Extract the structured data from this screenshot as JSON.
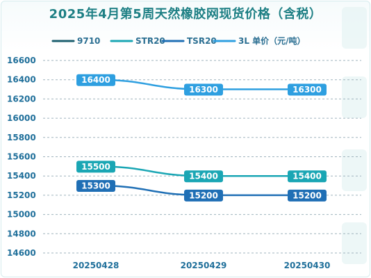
{
  "chart_data": {
    "type": "line",
    "title": "2025年4月第5周天然橡胶网现货价格（含税）",
    "categories": [
      "20250428",
      "20250429",
      "20250430"
    ],
    "ylim": [
      14600,
      16600
    ],
    "yticks": [
      14600,
      14800,
      15000,
      15200,
      15400,
      15600,
      15800,
      16000,
      16200,
      16400,
      16600
    ],
    "grid": true,
    "legend_position": "top",
    "series": [
      {
        "name": "9710",
        "values": [
          null,
          null,
          null
        ],
        "color": "#1b5e6e"
      },
      {
        "name": "STR20",
        "values": [
          15500,
          15400,
          15400
        ],
        "color": "#1aa6b4"
      },
      {
        "name": "TSR20",
        "values": [
          15300,
          15200,
          15200
        ],
        "color": "#1f6fb5"
      },
      {
        "name": "3L 单价（元/吨）",
        "values": [
          16400,
          16300,
          16300
        ],
        "color": "#2e9fe0"
      }
    ]
  }
}
